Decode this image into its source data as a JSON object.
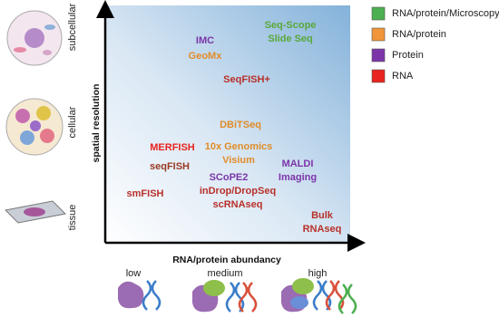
{
  "legend": [
    {
      "label": "RNA/protein/Microscopy",
      "color": "#4caf50"
    },
    {
      "label": "RNA/protein",
      "color": "#f0953a"
    },
    {
      "label": "Protein",
      "color": "#7b35a8"
    },
    {
      "label": "RNA",
      "color": "#e8231f"
    }
  ],
  "axes": {
    "y_label": "spatial resolution",
    "x_label": "RNA/protein abundancy"
  },
  "scale_labels": [
    "subcellular",
    "cellular",
    "tissue"
  ],
  "abundance_labels": [
    "low",
    "medium",
    "high"
  ],
  "methods": [
    {
      "lines": [
        "Seq-Scope",
        "Slide Seq"
      ],
      "color": "#5aa83a"
    },
    {
      "lines": [
        "IMC"
      ],
      "color": "#7b35a8"
    },
    {
      "lines": [
        "GeoMx"
      ],
      "color": "#e08c2a"
    },
    {
      "lines": [
        "SeqFISH+"
      ],
      "color": "#b8302a"
    },
    {
      "lines": [
        "DBiTSeq"
      ],
      "color": "#e08c2a"
    },
    {
      "lines": [
        "MERFISH"
      ],
      "color": "#e8231f"
    },
    {
      "lines": [
        "seqFISH"
      ],
      "color": "#9a3a22"
    },
    {
      "lines": [
        "10x Genomics",
        "Visium"
      ],
      "color": "#e08c2a"
    },
    {
      "lines": [
        "MALDI",
        "Imaging"
      ],
      "color": "#7b35a8"
    },
    {
      "lines": [
        "SCoPE2"
      ],
      "color": "#7b35a8"
    },
    {
      "lines": [
        "inDrop/DropSeq",
        "scRNAseq"
      ],
      "color": "#b8302a"
    },
    {
      "lines": [
        "smFISH"
      ],
      "color": "#b8302a"
    },
    {
      "lines": [
        "Bulk",
        "RNAseq"
      ],
      "color": "#b8302a"
    }
  ]
}
